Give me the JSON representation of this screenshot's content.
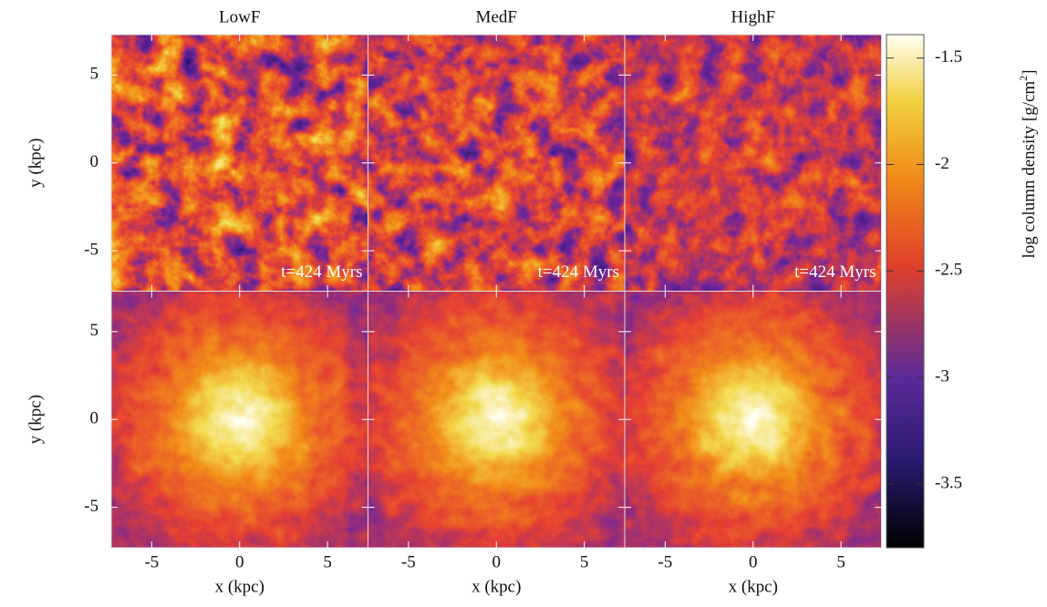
{
  "figure": {
    "columns": [
      "LowF",
      "MedF",
      "HighF"
    ],
    "annotation": "t=424 Myrs",
    "x_label": "x (kpc)",
    "y_label": "y (kpc)",
    "xlim": [
      -7.3,
      7.3
    ],
    "ylim": [
      -7.3,
      7.3
    ],
    "xticks": [
      -5,
      0,
      5
    ],
    "yticks": [
      -5,
      0,
      5
    ],
    "colorbar": {
      "label": "log column density [g/cm",
      "label_superscript": "2",
      "label_suffix": "]",
      "lim": [
        -3.8,
        -1.39
      ],
      "ticks": [
        -1.5,
        -2,
        -2.5,
        -3,
        -3.5
      ]
    }
  }
}
